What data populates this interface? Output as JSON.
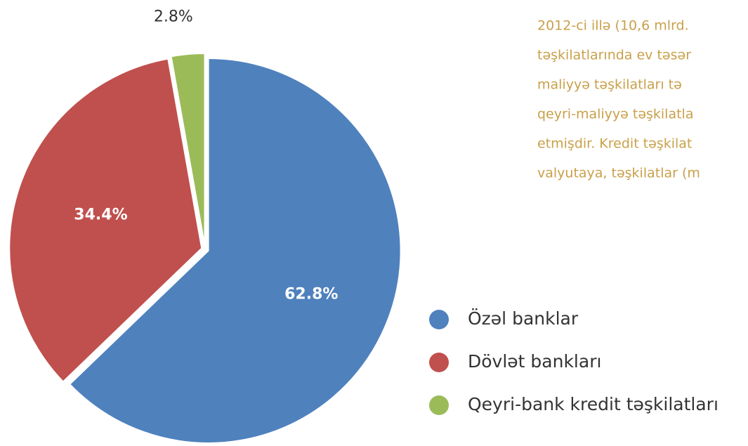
{
  "chart_data": {
    "type": "pie",
    "categories": [
      "Özəl banklar",
      "Dövlət bankları",
      "Qeyri-bank kredit təşkilatları"
    ],
    "values": [
      62.8,
      34.4,
      2.8
    ],
    "value_labels": [
      "62.8%",
      "34.4%",
      "2.8%"
    ],
    "colors": [
      "#4f81bd",
      "#c0504d",
      "#9bbb59"
    ],
    "legend": "right"
  },
  "text": {
    "lines": [
      "2012-ci illə (10,6 mlrd.",
      "təşkilatlarında ev təsər",
      "maliyyə  təşkilatları  tə",
      "qeyri-maliyyə təşkilatla",
      "etmişdir. Kredit təşkilat",
      "valyutaya, təşkilatlar (m"
    ]
  }
}
